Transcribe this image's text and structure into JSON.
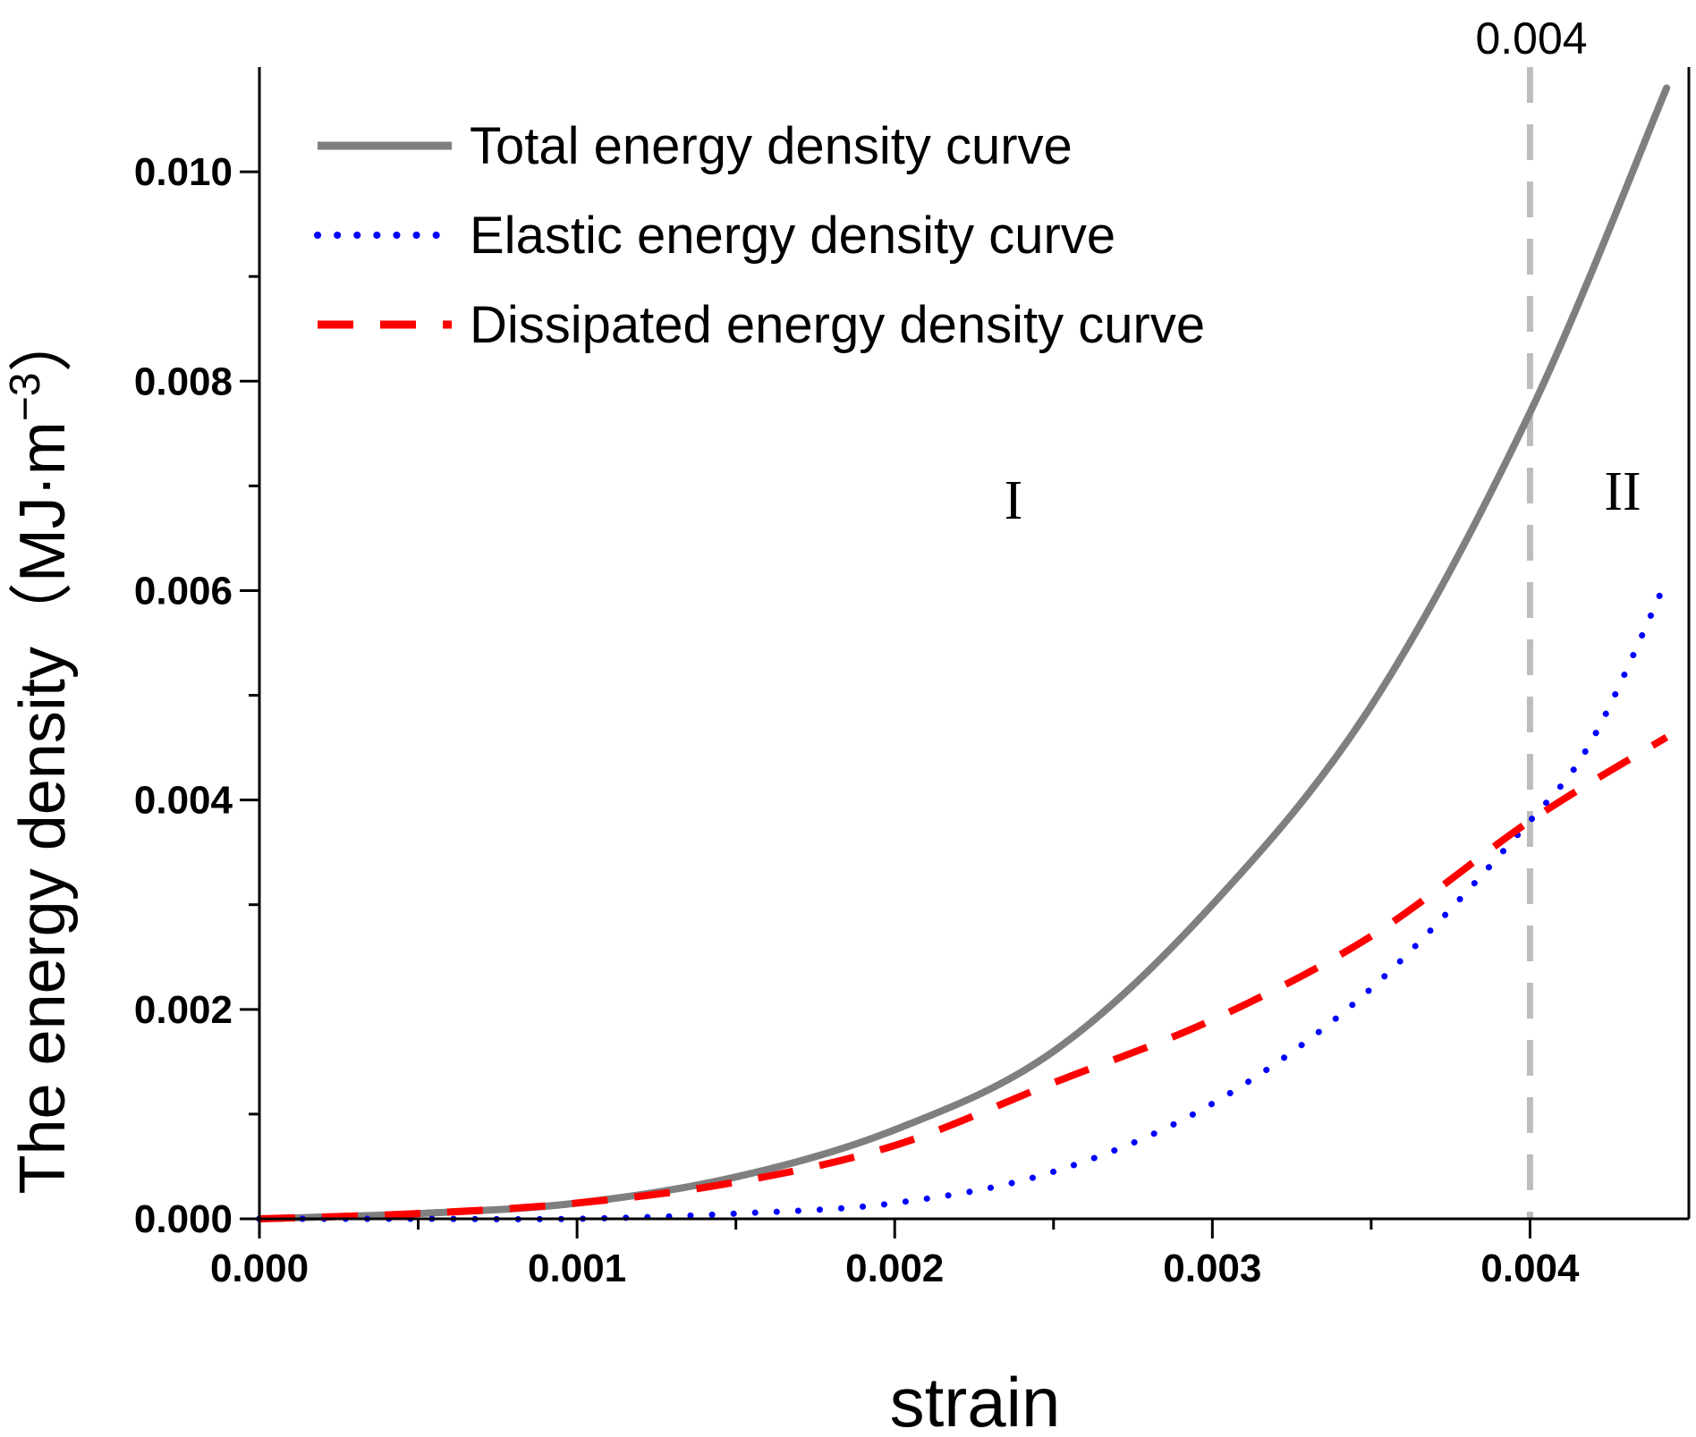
{
  "chart_data": {
    "type": "line",
    "title": "",
    "xlabel": "strain",
    "ylabel": "The energy density（MJ·m",
    "ylabel_exponent": "−3",
    "ylabel_close": "）",
    "xlim": [
      0,
      0.0045
    ],
    "ylim": [
      0,
      0.011
    ],
    "x_ticks": [
      "0.000",
      "0.001",
      "0.002",
      "0.003",
      "0.004"
    ],
    "y_ticks": [
      "0.000",
      "0.002",
      "0.004",
      "0.006",
      "0.008",
      "0.010"
    ],
    "grid": false,
    "legend_position": "top-left",
    "reference_line": {
      "x": 0.004,
      "label": "0.004",
      "color": "#bdbdbd"
    },
    "regions": [
      {
        "label": "I",
        "x": 0.00237,
        "y": 0.0068
      },
      {
        "label": "II",
        "x": 0.00429,
        "y": 0.0069
      }
    ],
    "series": [
      {
        "name": "Total energy density curve",
        "color": "#7f7f7f",
        "style": "solid",
        "x": [
          0,
          0.0005,
          0.001,
          0.0015,
          0.002,
          0.0025,
          0.003,
          0.0035,
          0.004,
          0.00443
        ],
        "y": [
          0,
          5e-05,
          0.00015,
          0.0004,
          0.00085,
          0.0016,
          0.003,
          0.0049,
          0.0077,
          0.0108
        ]
      },
      {
        "name": "Elastic energy density curve",
        "color": "#0000ff",
        "style": "dotted",
        "x": [
          0,
          0.0005,
          0.001,
          0.0015,
          0.002,
          0.0025,
          0.003,
          0.0035,
          0.004,
          0.0042,
          0.00443
        ],
        "y": [
          0,
          0,
          0,
          5e-05,
          0.00015,
          0.00045,
          0.0011,
          0.0022,
          0.0038,
          0.0046,
          0.0061
        ]
      },
      {
        "name": "Dissipated energy density curve",
        "color": "#ff0000",
        "style": "dashed",
        "x": [
          0,
          0.0005,
          0.001,
          0.0015,
          0.002,
          0.0025,
          0.003,
          0.0035,
          0.004,
          0.00443
        ],
        "y": [
          0,
          5e-05,
          0.00015,
          0.00035,
          0.0007,
          0.0013,
          0.0019,
          0.0027,
          0.0038,
          0.0046
        ]
      }
    ]
  }
}
